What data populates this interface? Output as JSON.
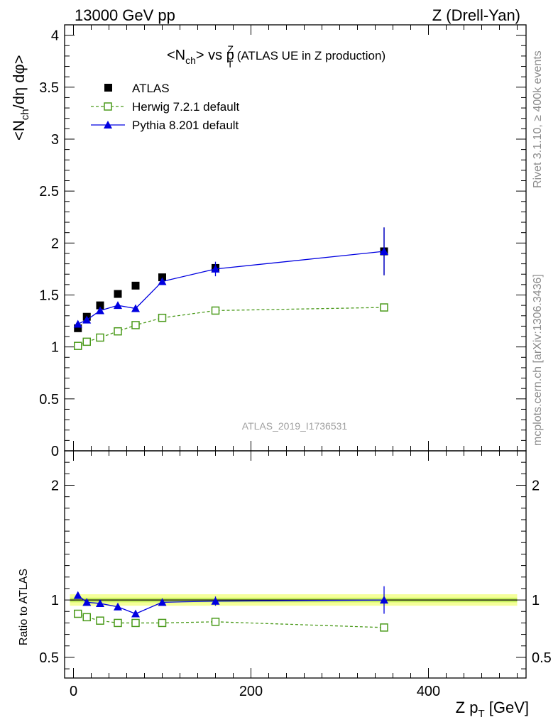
{
  "header": {
    "left": "13000 GeV pp",
    "right": "Z (Drell-Yan)"
  },
  "side_labels": {
    "rivet": "Rivet 3.1.10, ≥ 400k events",
    "mcplots": "mcplots.cern.ch [arXiv:1306.3436]"
  },
  "chart_data": [
    {
      "type": "scatter",
      "panel": "main",
      "title": {
        "pre": "<N",
        "sub": "ch",
        "mid": "> vs p",
        "sub2": "T",
        "sup2": "Z",
        "post": " (ATLAS UE in Z production)"
      },
      "ylabel": "<N_ch/dη dφ>",
      "ylabel_parts": {
        "a": "<N",
        "sub": "ch",
        "b": "/dη dφ>"
      },
      "analysis_id": "ATLAS_2019_I1736531",
      "xlim": [
        -10,
        510
      ],
      "ylim": [
        0,
        4.1
      ],
      "yticks": [
        "0",
        "0.5",
        "1",
        "1.5",
        "2",
        "2.5",
        "3",
        "3.5",
        "4"
      ],
      "ytick_values": [
        0,
        0.5,
        1,
        1.5,
        2,
        2.5,
        3,
        3.5,
        4
      ],
      "legend_position": "top-left",
      "series": [
        {
          "name": "ATLAS",
          "color": "#000000",
          "marker": "filled-square",
          "line": "none",
          "x": [
            5,
            15,
            30,
            50,
            70,
            100,
            160,
            350
          ],
          "y": [
            1.18,
            1.29,
            1.4,
            1.51,
            1.59,
            1.67,
            1.76,
            1.92
          ],
          "err": [
            0.01,
            0.01,
            0.01,
            0.01,
            0.01,
            0.02,
            0.03,
            0.23
          ]
        },
        {
          "name": "Herwig 7.2.1 default",
          "color": "#4a9a1a",
          "marker": "open-square",
          "line": "dashed",
          "x": [
            5,
            15,
            30,
            50,
            70,
            100,
            160,
            350
          ],
          "y": [
            1.01,
            1.05,
            1.09,
            1.15,
            1.21,
            1.28,
            1.35,
            1.38
          ],
          "err": [
            0.0,
            0.0,
            0.0,
            0.0,
            0.0,
            0.0,
            0.01,
            0.03
          ]
        },
        {
          "name": "Pythia 8.201 default",
          "color": "#0000e0",
          "marker": "filled-triangle",
          "line": "solid",
          "x": [
            5,
            15,
            30,
            50,
            70,
            100,
            160,
            350
          ],
          "y": [
            1.22,
            1.26,
            1.35,
            1.4,
            1.37,
            1.63,
            1.75,
            1.92
          ],
          "err": [
            0.01,
            0.01,
            0.01,
            0.01,
            0.03,
            0.03,
            0.07,
            0.23
          ]
        }
      ]
    },
    {
      "type": "scatter",
      "panel": "ratio",
      "ylabel": "Ratio to ATLAS",
      "xlabel": "Z p_T [GeV]",
      "xlabel_parts": {
        "a": "Z p",
        "sub": "T",
        "b": " [GeV]"
      },
      "xlim": [
        -10,
        510
      ],
      "xticks": [
        "0",
        "200",
        "400"
      ],
      "xtick_values": [
        0,
        200,
        400
      ],
      "ylim": [
        0.32,
        2.3
      ],
      "yticks": [
        "0.5",
        "1",
        "2"
      ],
      "ytick_values": [
        0.5,
        1,
        2
      ],
      "band": {
        "inner": 0.02,
        "outer": 0.05,
        "inner_color": "#c8f060",
        "outer_color": "#f5ff9a"
      },
      "series": [
        {
          "name": "Herwig 7.2.1 default",
          "color": "#4a9a1a",
          "x": [
            5,
            15,
            30,
            50,
            70,
            100,
            160,
            350
          ],
          "y": [
            0.88,
            0.85,
            0.82,
            0.8,
            0.8,
            0.8,
            0.81,
            0.76
          ],
          "err": [
            0.0,
            0.0,
            0.0,
            0.0,
            0.0,
            0.0,
            0.01,
            0.02
          ]
        },
        {
          "name": "Pythia 8.201 default",
          "color": "#0000e0",
          "x": [
            5,
            15,
            30,
            50,
            70,
            100,
            160,
            350
          ],
          "y": [
            1.04,
            0.98,
            0.97,
            0.94,
            0.88,
            0.98,
            0.99,
            1.0
          ],
          "err": [
            0.01,
            0.01,
            0.01,
            0.01,
            0.02,
            0.02,
            0.04,
            0.12
          ]
        }
      ]
    }
  ]
}
